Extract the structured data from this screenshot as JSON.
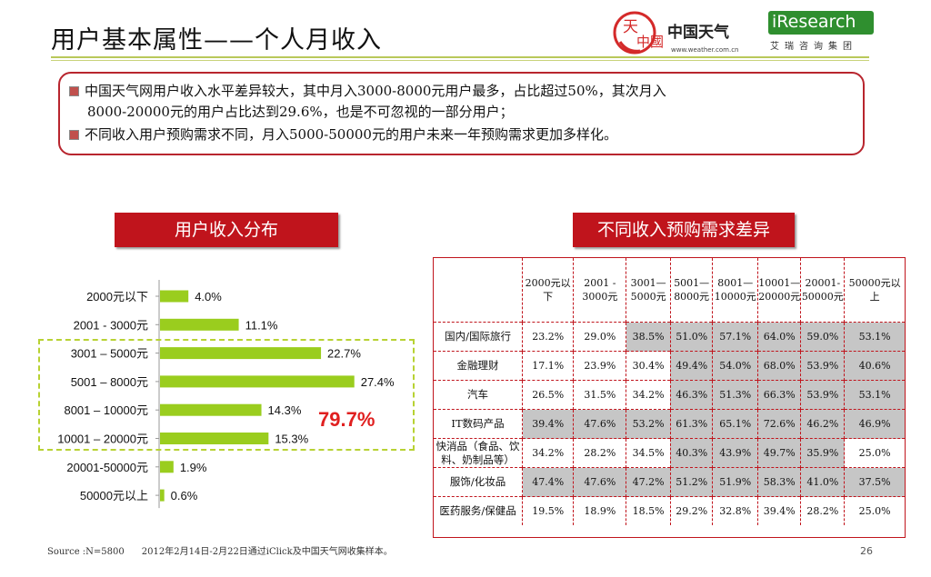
{
  "slide": {
    "title": "用户基本属性——个人月收入",
    "logo_weather_cn": "中国天气",
    "logo_weather_url": "www.weather.com.cn",
    "logo_seal": "中國",
    "logo_ir": "iResearch",
    "logo_ir_sub": "艾瑞咨询集团",
    "page_number": "26",
    "source": "Source :N=5800      2012年2月14日-2月22日通过iClick及中国天气网收集样本。"
  },
  "summary": {
    "line1": "中国天气网用户收入水平差异较大，其中月入3000-8000元用户最多，占比超过50%，其次月入",
    "line2": "8000-20000元的用户占比达到29.6%，也是不可忽视的一部分用户；",
    "line3": "不同收入用户预购需求不同，月入5000-50000元的用户未来一年预购需求更加多样化。"
  },
  "sections": {
    "left_title": "用户收入分布",
    "right_title": "不同收入预购需求差异"
  },
  "chart_data": {
    "type": "bar",
    "orientation": "horizontal",
    "categories": [
      "2000元以下",
      "2001 - 3000元",
      "3001 – 5000元",
      "5001 – 8000元",
      "8001 – 10000元",
      "10001 – 20000元",
      "20001-50000元",
      "50000元以上"
    ],
    "values": [
      4.0,
      11.1,
      22.7,
      27.4,
      14.3,
      15.3,
      1.9,
      0.6
    ],
    "value_labels": [
      "4.0%",
      "11.1%",
      "22.7%",
      "27.4%",
      "14.3%",
      "15.3%",
      "1.9%",
      "0.6%"
    ],
    "bar_color": "#9acd1e",
    "highlight_total": "79.7%",
    "highlight_color": "#e02020",
    "grid": false
  },
  "table": {
    "headers": [
      "",
      "2000元以下",
      "2001 - 3000元",
      "3001—5000元",
      "5001—8000元",
      "8001—10000元",
      "10001—20000元",
      "20001-50000元",
      "50000元以上"
    ],
    "rows": [
      {
        "label": "国内/国际旅行",
        "cells": [
          "23.2%",
          "29.0%",
          "38.5%",
          "51.0%",
          "57.1%",
          "64.0%",
          "59.0%",
          "53.1%"
        ],
        "hi": [
          false,
          false,
          true,
          true,
          true,
          true,
          true,
          true
        ]
      },
      {
        "label": "金融理财",
        "cells": [
          "17.1%",
          "23.9%",
          "30.4%",
          "49.4%",
          "54.0%",
          "68.0%",
          "53.9%",
          "40.6%"
        ],
        "hi": [
          false,
          false,
          false,
          true,
          true,
          true,
          true,
          true
        ]
      },
      {
        "label": "汽车",
        "cells": [
          "26.5%",
          "31.5%",
          "34.2%",
          "46.3%",
          "51.3%",
          "66.3%",
          "53.9%",
          "53.1%"
        ],
        "hi": [
          false,
          false,
          false,
          true,
          true,
          true,
          true,
          true
        ]
      },
      {
        "label": "IT数码产品",
        "cells": [
          "39.4%",
          "47.6%",
          "53.2%",
          "61.3%",
          "65.1%",
          "72.6%",
          "46.2%",
          "46.9%"
        ],
        "hi": [
          true,
          true,
          true,
          true,
          true,
          true,
          true,
          true
        ]
      },
      {
        "label": "快消品（食品、饮料、奶制品等）",
        "cells": [
          "34.2%",
          "28.2%",
          "34.5%",
          "40.3%",
          "43.9%",
          "49.7%",
          "35.9%",
          "25.0%"
        ],
        "hi": [
          false,
          false,
          false,
          true,
          true,
          true,
          true,
          false
        ]
      },
      {
        "label": "服饰/化妆品",
        "cells": [
          "47.4%",
          "47.6%",
          "47.2%",
          "51.2%",
          "51.9%",
          "58.3%",
          "41.0%",
          "37.5%"
        ],
        "hi": [
          true,
          true,
          true,
          true,
          true,
          true,
          true,
          true
        ]
      },
      {
        "label": "医药服务/保健品",
        "cells": [
          "19.5%",
          "18.9%",
          "18.5%",
          "29.2%",
          "32.8%",
          "39.4%",
          "28.2%",
          "25.0%"
        ],
        "hi": [
          false,
          false,
          false,
          false,
          false,
          false,
          false,
          false
        ]
      }
    ],
    "highlight_color": "#c6c6c6",
    "border_color": "#c0141c"
  }
}
